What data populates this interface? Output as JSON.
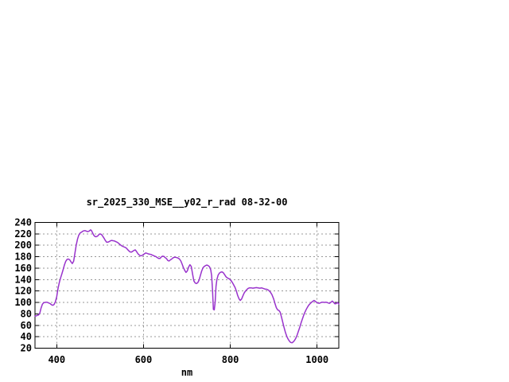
{
  "window": {
    "background": "#ffffff"
  },
  "colors": {
    "line": "#9933CC",
    "grid": "#989898",
    "axis": "#000000",
    "text": "#000000",
    "background": "#ffffff"
  },
  "chart_data": {
    "type": "line",
    "title": "sr_2025_330_MSE__y02_r_rad 08-32-00",
    "xlabel": "nm",
    "ylabel": "",
    "xlim": [
      350,
      1050
    ],
    "ylim": [
      20,
      240
    ],
    "x_ticks": [
      400,
      600,
      800,
      1000
    ],
    "y_ticks": [
      20,
      40,
      60,
      80,
      100,
      120,
      140,
      160,
      180,
      200,
      220,
      240
    ],
    "grid": true,
    "legend": "none",
    "series": [
      {
        "name": "sr_2025_330_MSE__y02_r_rad",
        "color": "#9933CC",
        "points": [
          [
            350,
            76
          ],
          [
            354,
            77
          ],
          [
            358,
            78
          ],
          [
            361,
            81
          ],
          [
            364,
            90
          ],
          [
            367,
            97
          ],
          [
            370,
            99.5
          ],
          [
            373,
            100
          ],
          [
            376,
            100.5
          ],
          [
            379,
            100
          ],
          [
            382,
            99
          ],
          [
            385,
            98
          ],
          [
            388,
            96
          ],
          [
            391,
            95
          ],
          [
            394,
            96.5
          ],
          [
            397,
            101
          ],
          [
            400,
            110
          ],
          [
            403,
            124
          ],
          [
            406,
            135
          ],
          [
            409,
            143
          ],
          [
            412,
            150
          ],
          [
            415,
            158
          ],
          [
            418,
            166
          ],
          [
            421,
            172
          ],
          [
            424,
            175.5
          ],
          [
            427,
            176
          ],
          [
            430,
            174.5
          ],
          [
            433,
            171
          ],
          [
            436,
            168
          ],
          [
            439,
            172
          ],
          [
            442,
            186
          ],
          [
            445,
            200
          ],
          [
            448,
            211
          ],
          [
            451,
            218
          ],
          [
            454,
            221.5
          ],
          [
            457,
            223
          ],
          [
            460,
            224.5
          ],
          [
            463,
            225.5
          ],
          [
            466,
            225.5
          ],
          [
            469,
            224.5
          ],
          [
            472,
            224
          ],
          [
            475,
            225
          ],
          [
            478,
            227
          ],
          [
            480,
            226
          ],
          [
            482,
            223
          ],
          [
            485,
            218
          ],
          [
            488,
            215.5
          ],
          [
            491,
            215
          ],
          [
            494,
            216
          ],
          [
            497,
            218.5
          ],
          [
            500,
            220
          ],
          [
            503,
            219
          ],
          [
            506,
            216
          ],
          [
            509,
            212.5
          ],
          [
            512,
            208.5
          ],
          [
            515,
            205.5
          ],
          [
            518,
            205.5
          ],
          [
            521,
            206.5
          ],
          [
            524,
            208
          ],
          [
            527,
            208.5
          ],
          [
            530,
            208
          ],
          [
            533,
            207.5
          ],
          [
            536,
            206.5
          ],
          [
            539,
            205.5
          ],
          [
            542,
            204
          ],
          [
            545,
            202
          ],
          [
            548,
            200
          ],
          [
            551,
            198.5
          ],
          [
            554,
            197.5
          ],
          [
            557,
            196.5
          ],
          [
            560,
            195.5
          ],
          [
            563,
            193
          ],
          [
            566,
            190.5
          ],
          [
            569,
            188.5
          ],
          [
            572,
            188
          ],
          [
            575,
            189.5
          ],
          [
            578,
            191
          ],
          [
            581,
            192
          ],
          [
            584,
            189
          ],
          [
            587,
            185.5
          ],
          [
            590,
            183
          ],
          [
            593,
            181.5
          ],
          [
            596,
            182
          ],
          [
            599,
            183.5
          ],
          [
            602,
            185
          ],
          [
            605,
            186.5
          ],
          [
            608,
            186
          ],
          [
            611,
            185
          ],
          [
            614,
            184.5
          ],
          [
            617,
            184
          ],
          [
            620,
            183
          ],
          [
            623,
            182
          ],
          [
            626,
            181
          ],
          [
            629,
            180
          ],
          [
            632,
            178.5
          ],
          [
            635,
            177
          ],
          [
            638,
            177
          ],
          [
            641,
            179.5
          ],
          [
            644,
            181
          ],
          [
            647,
            180.5
          ],
          [
            650,
            178.5
          ],
          [
            653,
            176.5
          ],
          [
            656,
            173.5
          ],
          [
            659,
            172.5
          ],
          [
            662,
            174.5
          ],
          [
            665,
            176
          ],
          [
            668,
            178
          ],
          [
            671,
            179
          ],
          [
            674,
            179
          ],
          [
            677,
            178.5
          ],
          [
            680,
            177.5
          ],
          [
            683,
            176
          ],
          [
            686,
            172.5
          ],
          [
            689,
            167
          ],
          [
            692,
            161
          ],
          [
            695,
            156
          ],
          [
            698,
            152.5
          ],
          [
            701,
            155
          ],
          [
            704,
            162
          ],
          [
            707,
            166
          ],
          [
            710,
            163
          ],
          [
            713,
            150
          ],
          [
            716,
            138
          ],
          [
            719,
            134
          ],
          [
            722,
            133
          ],
          [
            725,
            134.5
          ],
          [
            728,
            139
          ],
          [
            731,
            147
          ],
          [
            734,
            155
          ],
          [
            737,
            160.5
          ],
          [
            740,
            163
          ],
          [
            743,
            164.5
          ],
          [
            746,
            165.5
          ],
          [
            749,
            164.5
          ],
          [
            752,
            162.5
          ],
          [
            755,
            157
          ],
          [
            757,
            147
          ],
          [
            759,
            122
          ],
          [
            761,
            88
          ],
          [
            763,
            87
          ],
          [
            765,
            100
          ],
          [
            767,
            128
          ],
          [
            769,
            140
          ],
          [
            772,
            148
          ],
          [
            775,
            151.5
          ],
          [
            778,
            153
          ],
          [
            781,
            153.5
          ],
          [
            784,
            152
          ],
          [
            787,
            148.5
          ],
          [
            790,
            145
          ],
          [
            793,
            143
          ],
          [
            796,
            142
          ],
          [
            799,
            140.5
          ],
          [
            802,
            138
          ],
          [
            805,
            134.5
          ],
          [
            808,
            130.5
          ],
          [
            811,
            126
          ],
          [
            814,
            120
          ],
          [
            817,
            112.5
          ],
          [
            820,
            106.5
          ],
          [
            823,
            103.5
          ],
          [
            826,
            106
          ],
          [
            829,
            111.5
          ],
          [
            832,
            116.5
          ],
          [
            835,
            120
          ],
          [
            838,
            122.5
          ],
          [
            841,
            124.5
          ],
          [
            844,
            125.5
          ],
          [
            848,
            125.5
          ],
          [
            852,
            125
          ],
          [
            856,
            125.5
          ],
          [
            860,
            126
          ],
          [
            864,
            125.5
          ],
          [
            868,
            125
          ],
          [
            872,
            125.5
          ],
          [
            876,
            124.5
          ],
          [
            880,
            123.5
          ],
          [
            884,
            123
          ],
          [
            888,
            121.5
          ],
          [
            892,
            118.5
          ],
          [
            896,
            113.5
          ],
          [
            900,
            106
          ],
          [
            903,
            98
          ],
          [
            906,
            91
          ],
          [
            909,
            87
          ],
          [
            912,
            86
          ],
          [
            915,
            83
          ],
          [
            918,
            74
          ],
          [
            921,
            65
          ],
          [
            924,
            56
          ],
          [
            927,
            47.5
          ],
          [
            930,
            41
          ],
          [
            933,
            36
          ],
          [
            936,
            32.5
          ],
          [
            939,
            30
          ],
          [
            942,
            29.5
          ],
          [
            945,
            31
          ],
          [
            948,
            33.5
          ],
          [
            951,
            37.5
          ],
          [
            954,
            43
          ],
          [
            957,
            49.5
          ],
          [
            960,
            56.5
          ],
          [
            963,
            64
          ],
          [
            966,
            71
          ],
          [
            969,
            77.5
          ],
          [
            972,
            83
          ],
          [
            975,
            88
          ],
          [
            978,
            92
          ],
          [
            981,
            95.5
          ],
          [
            984,
            98
          ],
          [
            987,
            100
          ],
          [
            990,
            102
          ],
          [
            993,
            103.5
          ],
          [
            996,
            102
          ],
          [
            999,
            100
          ],
          [
            1002,
            99
          ],
          [
            1005,
            98.5
          ],
          [
            1008,
            99.5
          ],
          [
            1011,
            100.5
          ],
          [
            1014,
            100.5
          ],
          [
            1017,
            100
          ],
          [
            1020,
            100.5
          ],
          [
            1023,
            100
          ],
          [
            1026,
            99
          ],
          [
            1029,
            98.5
          ],
          [
            1032,
            100.5
          ],
          [
            1035,
            102.5
          ],
          [
            1038,
            100
          ],
          [
            1041,
            97.5
          ],
          [
            1044,
            98
          ],
          [
            1047,
            100
          ],
          [
            1050,
            97
          ]
        ]
      }
    ]
  }
}
